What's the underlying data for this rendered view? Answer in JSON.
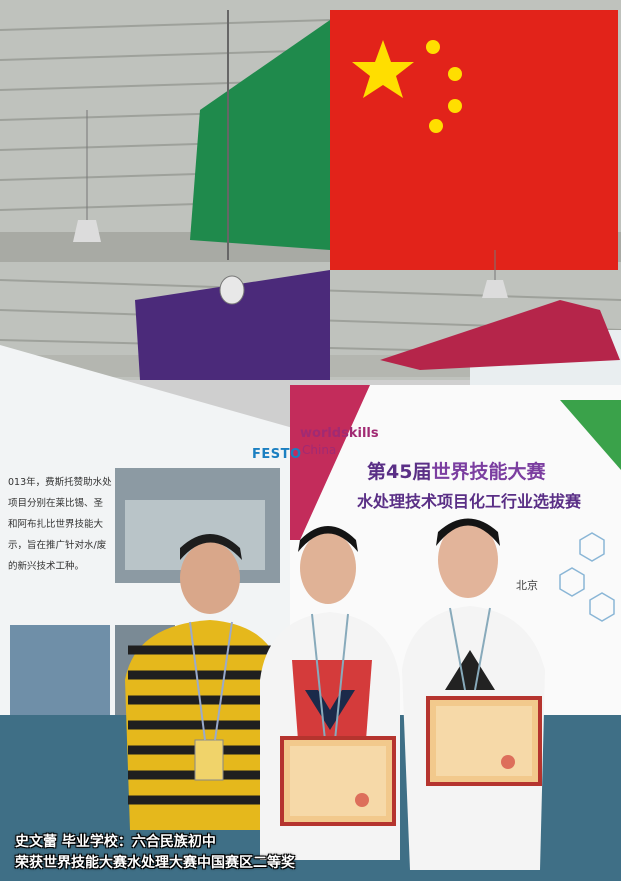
{
  "photo": {
    "banner": {
      "logo_word": "worldskills",
      "logo_country": "China",
      "title_line1_prefix": "第45届",
      "title_line1_highlight": "世界技能大赛",
      "title_line2": "水处理技术项目化工行业选拔赛",
      "city": "北京"
    },
    "left_panel": {
      "brand": "FESTO",
      "text_lines": [
        "013年，费斯托赞助水处",
        "项目分别在莱比锡、圣",
        "和阿布扎比世界技能大",
        "示，旨在推广针对水/废",
        "的新兴技术工种。"
      ]
    },
    "caption": {
      "line1": "史文蕾 毕业学校：六合民族初中",
      "line2": "荣获世界技能大赛水处理大赛中国赛区二等奖"
    },
    "colors": {
      "flag_red": "#e2231a",
      "flag_yellow": "#ffde00",
      "banner_purple": "#5a2f86",
      "caption_text": "#ffffff"
    }
  }
}
